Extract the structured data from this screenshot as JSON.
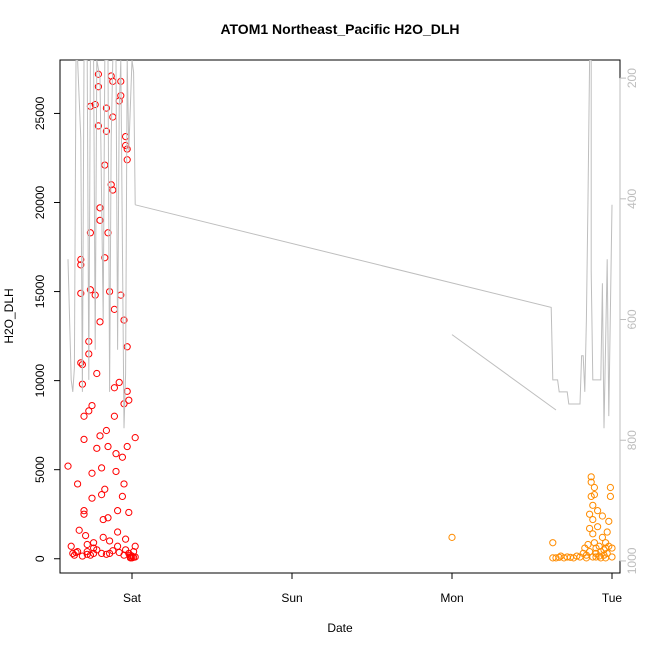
{
  "chart_data": {
    "type": "scatter",
    "title": "ATOM1 Northeast_Pacific H2O_DLH",
    "xlabel": "Date",
    "ylabel": "H2O_DLH",
    "x_ticks": [
      "Sat",
      "Sun",
      "Mon",
      "Tue"
    ],
    "x_tick_positions_days": [
      1,
      2,
      3,
      4
    ],
    "xlim_days": [
      0.55,
      4.05
    ],
    "ylim": [
      -800,
      28000
    ],
    "y_ticks": [
      0,
      5000,
      10000,
      15000,
      20000,
      25000
    ],
    "right_axis": {
      "ylim_reversed": [
        1020,
        170
      ],
      "ticks": [
        200,
        400,
        600,
        800,
        1000
      ],
      "color": "#bdbdbd"
    },
    "grid": false,
    "series": [
      {
        "color": "#ff0000",
        "marker": "open-circle",
        "points": [
          [
            0.6,
            5200
          ],
          [
            0.62,
            700
          ],
          [
            0.63,
            300
          ],
          [
            0.65,
            350
          ],
          [
            0.66,
            4200
          ],
          [
            0.67,
            1600
          ],
          [
            0.68,
            16800
          ],
          [
            0.68,
            16500
          ],
          [
            0.68,
            14900
          ],
          [
            0.68,
            11000
          ],
          [
            0.69,
            10900
          ],
          [
            0.69,
            9800
          ],
          [
            0.7,
            8000
          ],
          [
            0.7,
            6700
          ],
          [
            0.7,
            2700
          ],
          [
            0.7,
            2500
          ],
          [
            0.71,
            1300
          ],
          [
            0.72,
            800
          ],
          [
            0.72,
            400
          ],
          [
            0.72,
            250
          ],
          [
            0.73,
            12200
          ],
          [
            0.73,
            11500
          ],
          [
            0.73,
            8300
          ],
          [
            0.74,
            25400
          ],
          [
            0.74,
            18300
          ],
          [
            0.74,
            15100
          ],
          [
            0.75,
            8600
          ],
          [
            0.75,
            4800
          ],
          [
            0.75,
            3400
          ],
          [
            0.76,
            900
          ],
          [
            0.76,
            600
          ],
          [
            0.76,
            300
          ],
          [
            0.77,
            25500
          ],
          [
            0.77,
            14800
          ],
          [
            0.78,
            10400
          ],
          [
            0.78,
            6200
          ],
          [
            0.79,
            27200
          ],
          [
            0.79,
            26500
          ],
          [
            0.79,
            24300
          ],
          [
            0.8,
            19700
          ],
          [
            0.8,
            19000
          ],
          [
            0.8,
            13300
          ],
          [
            0.8,
            6900
          ],
          [
            0.81,
            5100
          ],
          [
            0.81,
            3600
          ],
          [
            0.82,
            2200
          ],
          [
            0.82,
            1200
          ],
          [
            0.83,
            22100
          ],
          [
            0.83,
            16900
          ],
          [
            0.83,
            3900
          ],
          [
            0.84,
            25300
          ],
          [
            0.84,
            24000
          ],
          [
            0.84,
            7200
          ],
          [
            0.85,
            18300
          ],
          [
            0.85,
            6300
          ],
          [
            0.85,
            2300
          ],
          [
            0.86,
            1000
          ],
          [
            0.86,
            300
          ],
          [
            0.86,
            15000
          ],
          [
            0.87,
            27100
          ],
          [
            0.87,
            21000
          ],
          [
            0.88,
            26800
          ],
          [
            0.88,
            24800
          ],
          [
            0.88,
            20700
          ],
          [
            0.89,
            14000
          ],
          [
            0.89,
            9600
          ],
          [
            0.89,
            8000
          ],
          [
            0.9,
            5900
          ],
          [
            0.9,
            4900
          ],
          [
            0.91,
            2700
          ],
          [
            0.91,
            1500
          ],
          [
            0.91,
            700
          ],
          [
            0.92,
            25700
          ],
          [
            0.92,
            9900
          ],
          [
            0.93,
            26000
          ],
          [
            0.93,
            26800
          ],
          [
            0.93,
            14800
          ],
          [
            0.94,
            5700
          ],
          [
            0.94,
            3500
          ],
          [
            0.95,
            13400
          ],
          [
            0.95,
            8700
          ],
          [
            0.95,
            4200
          ],
          [
            0.96,
            1100
          ],
          [
            0.96,
            500
          ],
          [
            0.96,
            23700
          ],
          [
            0.96,
            23200
          ],
          [
            0.97,
            23000
          ],
          [
            0.97,
            22400
          ],
          [
            0.97,
            11900
          ],
          [
            0.97,
            9400
          ],
          [
            0.97,
            6300
          ],
          [
            0.98,
            2600
          ],
          [
            0.98,
            300
          ],
          [
            0.99,
            200
          ],
          [
            0.99,
            100
          ],
          [
            0.98,
            8900
          ],
          [
            1.0,
            50
          ],
          [
            1.0,
            150
          ],
          [
            1.01,
            400
          ],
          [
            1.02,
            700
          ],
          [
            1.02,
            6800
          ],
          [
            1.02,
            100
          ],
          [
            0.64,
            200
          ],
          [
            0.66,
            400
          ],
          [
            0.69,
            150
          ],
          [
            0.74,
            200
          ],
          [
            0.78,
            500
          ],
          [
            0.81,
            300
          ],
          [
            0.84,
            250
          ],
          [
            0.88,
            450
          ],
          [
            0.92,
            350
          ],
          [
            0.95,
            200
          ],
          [
            0.99,
            50
          ],
          [
            1.01,
            80
          ]
        ]
      },
      {
        "color": "#ff8c00",
        "marker": "open-circle",
        "points": [
          [
            3.0,
            1200
          ],
          [
            3.63,
            900
          ],
          [
            3.63,
            50
          ],
          [
            3.65,
            50
          ],
          [
            3.67,
            80
          ],
          [
            3.68,
            150
          ],
          [
            3.7,
            50
          ],
          [
            3.72,
            100
          ],
          [
            3.74,
            80
          ],
          [
            3.76,
            50
          ],
          [
            3.78,
            150
          ],
          [
            3.8,
            100
          ],
          [
            3.82,
            300
          ],
          [
            3.83,
            600
          ],
          [
            3.84,
            200
          ],
          [
            3.85,
            800
          ],
          [
            3.86,
            1700
          ],
          [
            3.86,
            2500
          ],
          [
            3.87,
            3500
          ],
          [
            3.87,
            4600
          ],
          [
            3.87,
            4300
          ],
          [
            3.88,
            3000
          ],
          [
            3.88,
            2200
          ],
          [
            3.88,
            1400
          ],
          [
            3.89,
            4000
          ],
          [
            3.89,
            3600
          ],
          [
            3.89,
            900
          ],
          [
            3.9,
            600
          ],
          [
            3.9,
            300
          ],
          [
            3.9,
            100
          ],
          [
            3.91,
            2700
          ],
          [
            3.91,
            1800
          ],
          [
            3.92,
            700
          ],
          [
            3.93,
            400
          ],
          [
            3.93,
            50
          ],
          [
            3.94,
            2400
          ],
          [
            3.94,
            1200
          ],
          [
            3.95,
            500
          ],
          [
            3.95,
            200
          ],
          [
            3.96,
            900
          ],
          [
            3.96,
            50
          ],
          [
            3.97,
            1500
          ],
          [
            3.97,
            300
          ],
          [
            3.98,
            2100
          ],
          [
            3.98,
            700
          ],
          [
            3.99,
            4000
          ],
          [
            3.99,
            3500
          ],
          [
            4.0,
            600
          ],
          [
            4.0,
            100
          ],
          [
            3.84,
            50
          ],
          [
            3.86,
            400
          ],
          [
            3.88,
            100
          ],
          [
            3.92,
            150
          ],
          [
            3.96,
            600
          ]
        ]
      },
      {
        "color": "#bebebe",
        "style": "line",
        "axis": "right",
        "segments": [
          [
            [
              0.6,
              500
            ],
            [
              0.62,
              700
            ],
            [
              0.63,
              720
            ],
            [
              0.64,
              680
            ],
            [
              0.65,
              170
            ],
            [
              0.66,
              170
            ],
            [
              0.68,
              300
            ],
            [
              0.69,
              720
            ],
            [
              0.7,
              170
            ],
            [
              0.72,
              170
            ],
            [
              0.73,
              700
            ],
            [
              0.74,
              170
            ],
            [
              0.76,
              170
            ],
            [
              0.77,
              650
            ],
            [
              0.78,
              170
            ],
            [
              0.8,
              200
            ],
            [
              0.82,
              600
            ],
            [
              0.83,
              170
            ],
            [
              0.85,
              170
            ],
            [
              0.86,
              720
            ],
            [
              0.87,
              300
            ],
            [
              0.88,
              170
            ],
            [
              0.9,
              170
            ],
            [
              0.91,
              650
            ],
            [
              0.92,
              250
            ],
            [
              0.93,
              170
            ],
            [
              0.95,
              780
            ],
            [
              0.96,
              690
            ],
            [
              0.97,
              170
            ],
            [
              0.98,
              320
            ],
            [
              1.0,
              170
            ],
            [
              1.01,
              190
            ],
            [
              1.02,
              410
            ]
          ],
          [
            [
              1.02,
              410
            ],
            [
              3.62,
              580
            ],
            [
              3.63,
              700
            ],
            [
              3.66,
              700
            ],
            [
              3.67,
              720
            ],
            [
              3.72,
              720
            ],
            [
              3.73,
              740
            ],
            [
              3.8,
              740
            ],
            [
              3.81,
              660
            ],
            [
              3.82,
              660
            ],
            [
              3.83,
              720
            ],
            [
              3.84,
              600
            ],
            [
              3.85,
              400
            ],
            [
              3.86,
              170
            ],
            [
              3.87,
              170
            ],
            [
              3.87,
              520
            ],
            [
              3.88,
              700
            ],
            [
              3.9,
              700
            ],
            [
              3.91,
              700
            ],
            [
              3.93,
              700
            ],
            [
              3.94,
              540
            ],
            [
              3.95,
              780
            ],
            [
              3.97,
              500
            ],
            [
              3.98,
              760
            ],
            [
              4.0,
              410
            ]
          ],
          [
            [
              3.0,
              625
            ],
            [
              3.65,
              750
            ]
          ]
        ]
      }
    ]
  }
}
